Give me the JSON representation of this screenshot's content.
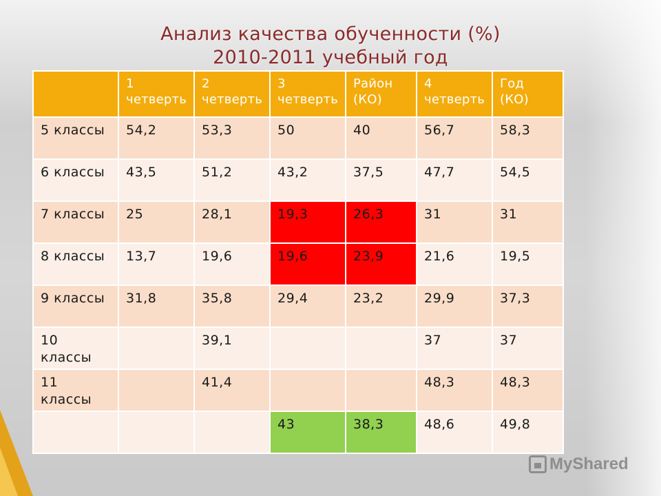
{
  "title": {
    "line1": "Анализ качества обученности (%)",
    "line2": "2010-2011 учебный год"
  },
  "table": {
    "headers": [
      "",
      "1 четверть",
      "2 четверть",
      "3 четверть",
      "Район (КО)",
      "4 четверть",
      "Год (КО)"
    ],
    "rows": [
      {
        "label": "5 классы",
        "cells": [
          "54,2",
          "53,3",
          "50",
          "40",
          "56,7",
          "58,3"
        ]
      },
      {
        "label": "6 классы",
        "cells": [
          "43,5",
          "51,2",
          "43,2",
          "37,5",
          "47,7",
          "54,5"
        ]
      },
      {
        "label": "7 классы",
        "cells": [
          "25",
          "28,1",
          "19,3",
          "26,3",
          "31",
          "31"
        ]
      },
      {
        "label": "8 классы",
        "cells": [
          "13,7",
          "19,6",
          "19,6",
          "23,9",
          "21,6",
          "19,5"
        ]
      },
      {
        "label": "9 классы",
        "cells": [
          "31,8",
          "35,8",
          "29,4",
          "23,2",
          "29,9",
          "37,3"
        ]
      },
      {
        "label": "10 классы",
        "cells": [
          "",
          "39,1",
          "",
          "",
          "37",
          "37"
        ]
      },
      {
        "label": "11 классы",
        "cells": [
          "",
          "41,4",
          "",
          "",
          "48,3",
          "48,3"
        ]
      },
      {
        "label": "",
        "cells": [
          "",
          "",
          "43",
          "38,3",
          "48,6",
          "49,8"
        ]
      }
    ],
    "highlight_colors": {
      "red": "#ff0000",
      "green": "#92d050",
      "header": "#f3ac0c"
    }
  },
  "watermark": {
    "text": "MyShared",
    "icon": "presentation-icon"
  }
}
